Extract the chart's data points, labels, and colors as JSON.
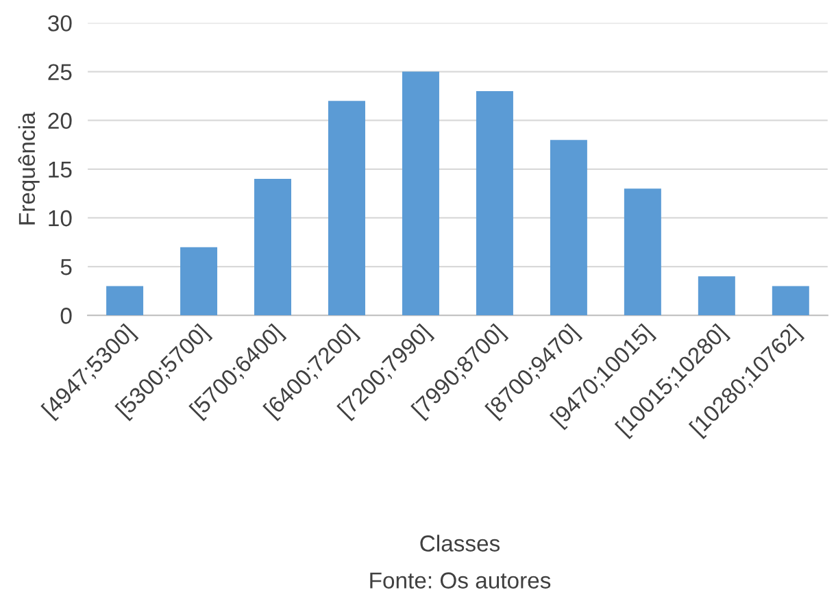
{
  "chart_data": {
    "type": "bar",
    "categories": [
      "[4947;5300]",
      "[5300;5700]",
      "[5700;6400]",
      "[6400;7200]",
      "[7200;7990]",
      "[7990;8700]",
      "[8700;9470]",
      "[9470;10015]",
      "[10015;10280]",
      "[10280;10762]"
    ],
    "values": [
      3,
      7,
      14,
      22,
      25,
      23,
      18,
      13,
      4,
      3
    ],
    "color": "#5b9bd5",
    "ylim": [
      0,
      30
    ],
    "yticks": [
      0,
      5,
      10,
      15,
      20,
      25,
      30
    ],
    "grid": "y",
    "xlabel": "Classes",
    "ylabel": "Frequência",
    "annotations": [
      "Fonte: Os autores"
    ]
  }
}
